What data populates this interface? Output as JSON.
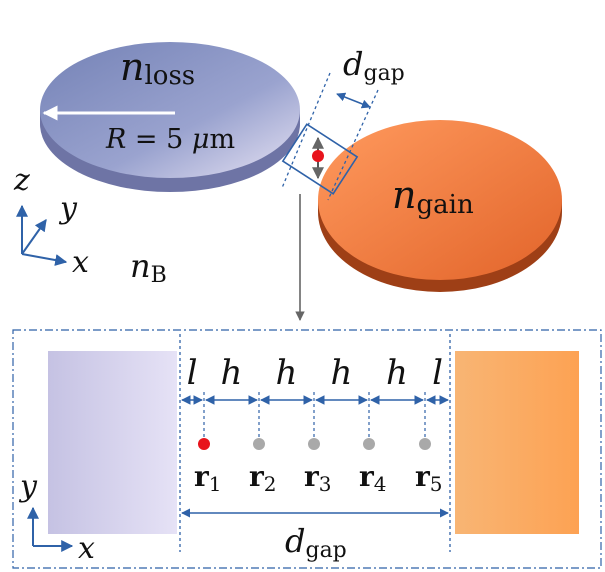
{
  "top": {
    "loss_label": {
      "main": "n",
      "sub": "loss"
    },
    "gain_label": {
      "main": "n",
      "sub": "gain"
    },
    "radius_label": {
      "lhs": "R",
      "eq": " = 5 ",
      "mu": "μ",
      "unit": "m"
    },
    "gap_label": {
      "main": "d",
      "sub": "gap"
    },
    "background_label": {
      "main": "n",
      "sub": "B"
    },
    "axes": {
      "z": "z",
      "y": "y",
      "x": "x"
    }
  },
  "inset": {
    "segment_labels": [
      "l",
      "h",
      "h",
      "h",
      "h",
      "l"
    ],
    "points": [
      {
        "bold": "r",
        "sub": "1",
        "color": "#e8141c"
      },
      {
        "bold": "r",
        "sub": "2",
        "color": "#a9a9a9"
      },
      {
        "bold": "r",
        "sub": "3",
        "color": "#a9a9a9"
      },
      {
        "bold": "r",
        "sub": "4",
        "color": "#a9a9a9"
      },
      {
        "bold": "r",
        "sub": "5",
        "color": "#a9a9a9"
      }
    ],
    "gap_label": {
      "main": "d",
      "sub": "gap"
    },
    "axes": {
      "y": "y",
      "x": "x"
    }
  },
  "colors": {
    "loss": "#8791c2",
    "gain": "#f07a3a",
    "arrow_blue": "#2f62a8",
    "emitter": "#e8141c"
  }
}
